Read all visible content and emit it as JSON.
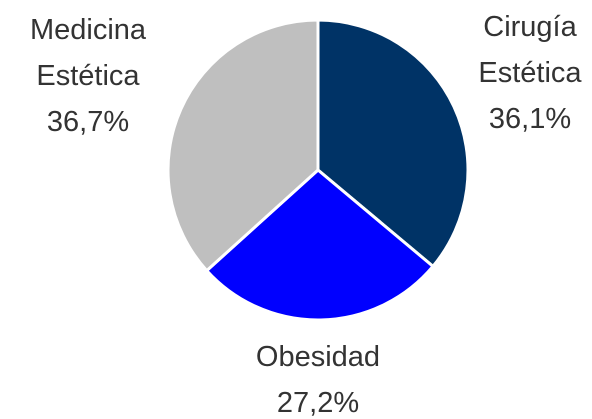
{
  "chart_data": {
    "type": "pie",
    "categories": [
      "Cirugía Estética",
      "Obesidad",
      "Medicina Estética"
    ],
    "values": [
      36.1,
      27.2,
      36.7
    ],
    "value_labels": [
      "36,1%",
      "27,2%",
      "36,7%"
    ],
    "colors": [
      "#003366",
      "#0000ff",
      "#bfbfbf"
    ]
  }
}
